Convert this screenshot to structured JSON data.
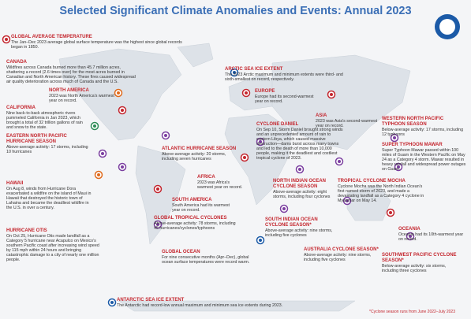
{
  "title": "Selected Significant Climate Anomalies and Events: Annual 2023",
  "footnote": "*Cyclone season runs from June 2022–July 2023",
  "events": [
    {
      "heading": "GLOBAL AVERAGE TEMPERATURE",
      "body": "The Jan–Dec 2023 average global surface temperature was the highest since global records began in 1850."
    },
    {
      "heading": "CANADA",
      "body": "Wildfires across Canada burned more than 45.7 million acres, shattering a record (2.6 times over) for the most acres burned in Canadian and North American history. These fires caused widespread air quality deterioration across much of Canada and the U.S."
    },
    {
      "heading": "NORTH AMERICA",
      "body": "2023 was North America's warmest year on record."
    },
    {
      "heading": "CALIFORNIA",
      "body": "Nine back-to-back atmospheric rivers pummeled California in Jan 2023, which brought a total of 32 trillion gallons of rain and snow to the state."
    },
    {
      "heading": "EASTERN NORTH PACIFIC HURRICANE SEASON",
      "body": "Above-average activity: 17 storms, including 10 hurricanes"
    },
    {
      "heading": "HAWAII",
      "body": "On Aug 8, winds from Hurricane Dora exacerbated a wildfire on the island of Maui in Hawaii that destroyed the historic town of Lahaina and became the deadliest wildfire in the U.S. in over a century."
    },
    {
      "heading": "HURRICANE OTIS",
      "body": "On Oct 25, Hurricane Otis made landfall as a Category 5 hurricane near Acapulco on Mexico's southern Pacific coast after increasing wind speed by 115 mph within 24 hours and bringing catastrophic damage to a city of nearly one million people."
    },
    {
      "heading": "ATLANTIC HURRICANE SEASON",
      "body": "Above-average activity: 20 storms, including seven hurricanes"
    },
    {
      "heading": "SOUTH AMERICA",
      "body": "South America had its warmest year on record."
    },
    {
      "heading": "GLOBAL TROPICAL CYCLONES",
      "body": "Above-average activity: 78 storms, including 45 hurricanes/cyclones/typhoons"
    },
    {
      "heading": "GLOBAL OCEAN",
      "body": "For nine consecutive months (Apr–Dec), global ocean surface temperatures were record warm."
    },
    {
      "heading": "ANTARCTIC SEA ICE EXTENT",
      "body": "The Antarctic had record-low annual maximum and minimum sea ice extents during 2023."
    },
    {
      "heading": "ARCTIC SEA ICE EXTENT",
      "body": "The 2023 Arctic maximum and minimum extents were third- and sixth-smallest on record, respectively."
    },
    {
      "heading": "EUROPE",
      "body": "Europe had its second-warmest year on record."
    },
    {
      "heading": "ASIA",
      "body": "2023 was Asia's second-warmest year on record."
    },
    {
      "heading": "CYCLONE DANIEL",
      "body": "On Sep 10, Storm Daniel brought strong winds and an unprecedented amount of rain to eastern Libya, which caused massive destruction—dams burst across many towns and led to the death of more than 10,000 people, making it the deadliest and costliest tropical cyclone of 2023."
    },
    {
      "heading": "AFRICA",
      "body": "2023 was Africa's warmest year on record."
    },
    {
      "heading": "NORTH INDIAN OCEAN CYCLONE SEASON",
      "body": "Above-average activity: eight storms, including four cyclones"
    },
    {
      "heading": "SOUTH INDIAN OCEAN CYCLONE SEASON*",
      "body": "Above-average activity: nine storms, including five cyclones"
    },
    {
      "heading": "AUSTRALIA CYCLONE SEASON*",
      "body": "Above-average activity: nine storms, including five cyclones"
    },
    {
      "heading": "TROPICAL CYCLONE MOCHA",
      "body": "Cyclone Mocha was the North Indian Ocean's first named storm of 2023, and made a devastating landfall as a Category 4 cyclone in Myanmar on May 14."
    },
    {
      "heading": "WESTERN NORTH PACIFIC TYPHOON SEASON",
      "body": "Below-average activity: 17 storms, including 12 typhoons"
    },
    {
      "heading": "SUPER TYPHOON MAWAR",
      "body": "Super Typhoon Mawar passed within 100 miles of Guam in the Western Pacific on May 24 as a Category 4 storm. Mawar resulted in heavy rainfall and widespread power outages on Guam."
    },
    {
      "heading": "OCEANIA",
      "body": "Oceania had its 10th-warmest year on record."
    },
    {
      "heading": "SOUTHWEST PACIFIC CYCLONE SEASON*",
      "body": "Below-average activity: six storms, including three cyclones"
    }
  ]
}
